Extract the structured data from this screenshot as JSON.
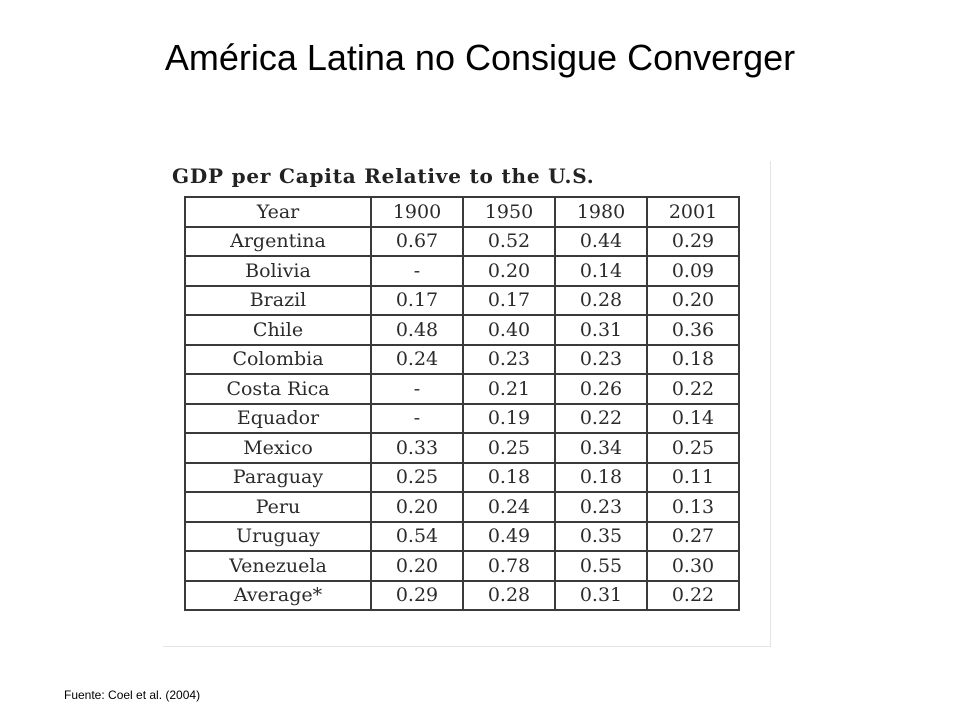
{
  "slide": {
    "title": "América Latina no Consigue Converger",
    "source": "Fuente: Coel et al.  (2004)"
  },
  "table": {
    "caption": "GDP per Capita Relative to the U.S.",
    "header": [
      "Year",
      "1900",
      "1950",
      "1980",
      "2001"
    ],
    "rows": [
      [
        "Argentina",
        "0.67",
        "0.52",
        "0.44",
        "0.29"
      ],
      [
        "Bolivia",
        "-",
        "0.20",
        "0.14",
        "0.09"
      ],
      [
        "Brazil",
        "0.17",
        "0.17",
        "0.28",
        "0.20"
      ],
      [
        "Chile",
        "0.48",
        "0.40",
        "0.31",
        "0.36"
      ],
      [
        "Colombia",
        "0.24",
        "0.23",
        "0.23",
        "0.18"
      ],
      [
        "Costa Rica",
        "-",
        "0.21",
        "0.26",
        "0.22"
      ],
      [
        "Equador",
        "-",
        "0.19",
        "0.22",
        "0.14"
      ],
      [
        "Mexico",
        "0.33",
        "0.25",
        "0.34",
        "0.25"
      ],
      [
        "Paraguay",
        "0.25",
        "0.18",
        "0.18",
        "0.11"
      ],
      [
        "Peru",
        "0.20",
        "0.24",
        "0.23",
        "0.13"
      ],
      [
        "Uruguay",
        "0.54",
        "0.49",
        "0.35",
        "0.27"
      ],
      [
        "Venezuela",
        "0.20",
        "0.78",
        "0.55",
        "0.30"
      ],
      [
        "Average*",
        "0.29",
        "0.28",
        "0.31",
        "0.22"
      ]
    ]
  }
}
